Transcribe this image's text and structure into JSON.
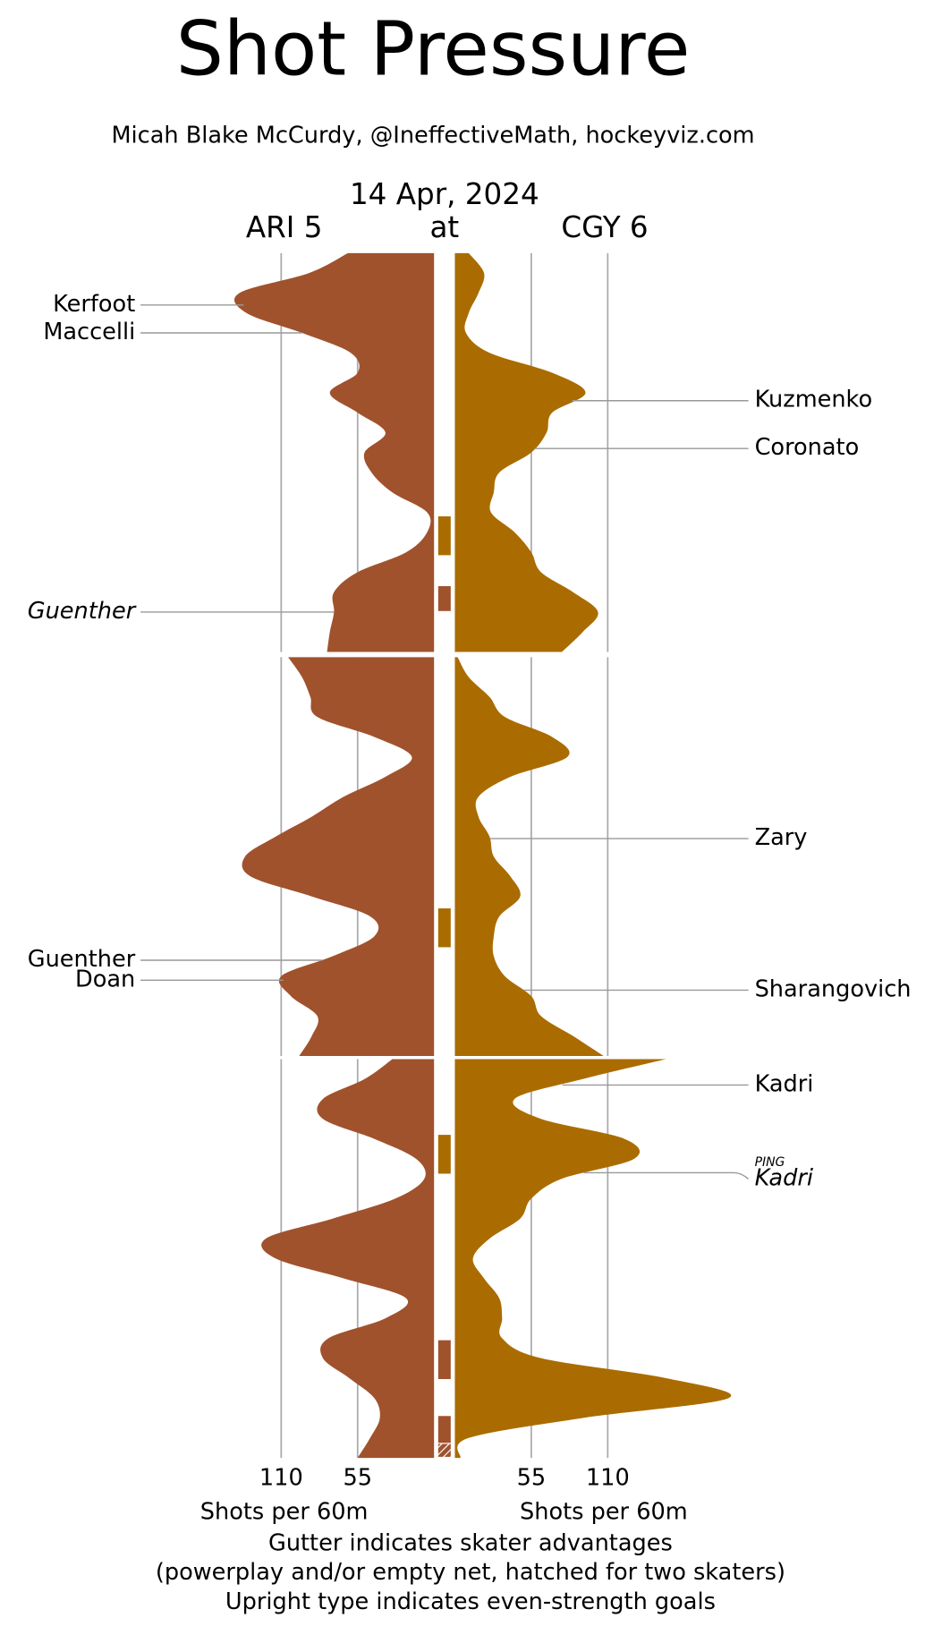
{
  "chart_data": {
    "type": "shot-pressure",
    "title": "Shot Pressure",
    "subtitle": "Micah Blake McCurdy, @IneffectiveMath, hockeyviz.com",
    "date": "14 Apr, 2024",
    "connector": "at",
    "xlabel": "Shots per 60m",
    "notes": [
      "Gutter indicates skater advantages",
      "(powerplay and/or empty net, hatched for two skaters)",
      "Upright type indicates even-strength goals"
    ],
    "x": [
      0,
      1,
      2,
      3,
      4,
      5,
      6,
      7,
      8,
      9,
      10,
      11,
      12,
      13,
      14,
      15,
      16,
      17,
      18,
      19,
      20
    ],
    "xlim": [
      0,
      200
    ],
    "xticks": [
      55,
      110
    ],
    "grid": true,
    "series": [
      {
        "name": "ARI 5",
        "side": "left",
        "color": "#a0522d",
        "periods": [
          [
            62,
            90,
            140,
            135,
            95,
            60,
            55,
            75,
            55,
            35,
            50,
            45,
            30,
            5,
            5,
            20,
            55,
            72,
            72,
            75,
            77
          ],
          [
            105,
            95,
            89,
            84,
            43,
            16,
            35,
            65,
            88,
            114,
            136,
            132,
            88,
            46,
            43,
            73,
            110,
            103,
            84,
            88,
            97
          ],
          [
            30,
            50,
            80,
            80,
            43,
            13,
            7,
            28,
            73,
            121,
            114,
            65,
            20,
            35,
            76,
            80,
            61,
            43,
            39,
            46,
            55
          ]
        ]
      },
      {
        "name": "CGY 6",
        "side": "right",
        "color": "#aa6c00",
        "periods": [
          [
            10,
            21,
            17,
            10,
            8,
            25,
            70,
            94,
            70,
            66,
            55,
            32,
            28,
            26,
            43,
            55,
            62,
            85,
            103,
            92,
            77
          ],
          [
            2,
            10,
            25,
            36,
            70,
            81,
            40,
            17,
            17,
            25,
            28,
            40,
            47,
            32,
            28,
            28,
            36,
            55,
            62,
            85,
            107
          ],
          [
            152,
            92,
            43,
            62,
            122,
            129,
            77,
            55,
            47,
            25,
            13,
            21,
            32,
            34,
            34,
            62,
            152,
            197,
            92,
            10,
            4
          ]
        ]
      }
    ],
    "gutter": [
      {
        "team": 1,
        "period": 0,
        "start": 13.2,
        "end": 15.2,
        "hatched": false
      },
      {
        "team": 0,
        "period": 0,
        "start": 16.7,
        "end": 18.0,
        "hatched": false
      },
      {
        "team": 1,
        "period": 1,
        "start": 12.6,
        "end": 14.6,
        "hatched": false
      },
      {
        "team": 1,
        "period": 2,
        "start": 3.8,
        "end": 5.8,
        "hatched": false
      },
      {
        "team": 0,
        "period": 2,
        "start": 14.1,
        "end": 16.1,
        "hatched": false
      },
      {
        "team": 0,
        "period": 2,
        "start": 17.9,
        "end": 19.3,
        "hatched": false
      },
      {
        "team": 0,
        "period": 2,
        "start": 19.3,
        "end": 20,
        "hatched": true
      }
    ],
    "goals": [
      {
        "team": 0,
        "period": 0,
        "minute": 2.6,
        "name": "Kerfoot",
        "even_strength": true
      },
      {
        "team": 0,
        "period": 0,
        "minute": 4.0,
        "name": "Maccelli",
        "even_strength": true
      },
      {
        "team": 0,
        "period": 0,
        "minute": 18.0,
        "name": "Guenther",
        "even_strength": false
      },
      {
        "team": 0,
        "period": 1,
        "minute": 15.2,
        "name": "Guenther",
        "even_strength": true
      },
      {
        "team": 0,
        "period": 1,
        "minute": 16.2,
        "name": "Doan",
        "even_strength": true
      },
      {
        "team": 1,
        "period": 0,
        "minute": 7.4,
        "name": "Kuzmenko",
        "even_strength": true
      },
      {
        "team": 1,
        "period": 0,
        "minute": 9.8,
        "name": "Coronato",
        "even_strength": true
      },
      {
        "team": 1,
        "period": 1,
        "minute": 9.1,
        "name": "Zary",
        "even_strength": true
      },
      {
        "team": 1,
        "period": 1,
        "minute": 16.7,
        "name": "Sharangovich",
        "even_strength": true
      },
      {
        "team": 1,
        "period": 2,
        "minute": 1.3,
        "name": "Kadri",
        "even_strength": true
      },
      {
        "team": 1,
        "period": 2,
        "minute": 5.7,
        "name": "Kadri",
        "even_strength": false,
        "note": "PING"
      }
    ]
  }
}
